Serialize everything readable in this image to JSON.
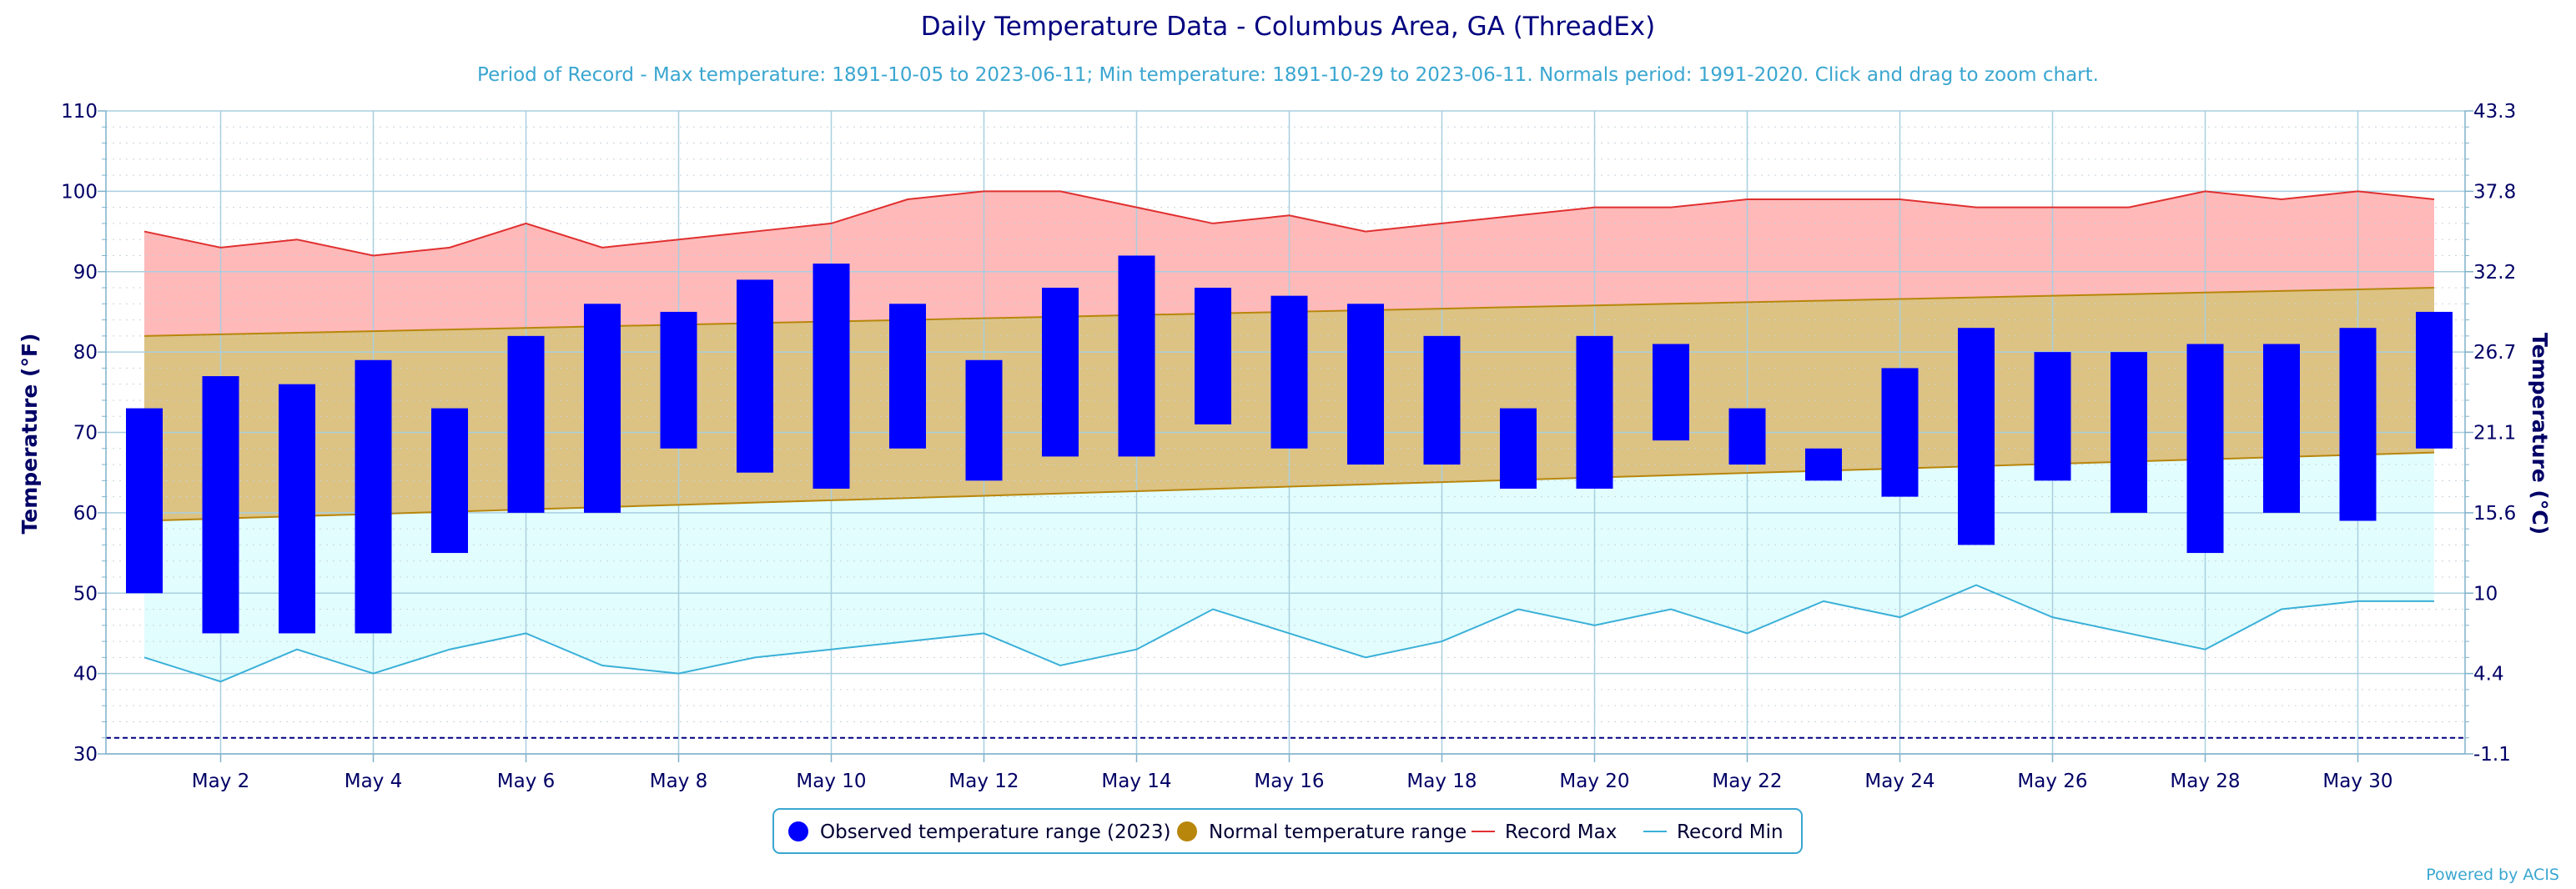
{
  "chart_data": {
    "type": "bar",
    "title": "Daily Temperature Data - Columbus Area, GA (ThreadEx)",
    "subtitle": "Period of Record - Max temperature: 1891-10-05 to 2023-06-11; Min temperature: 1891-10-29 to 2023-06-11. Normals period: 1991-2020. Click and drag to zoom chart.",
    "ylabel": "Temperature (°F)",
    "ylabel_right": "Temperature (°C)",
    "ylim": [
      30,
      110
    ],
    "yticks": [
      30,
      40,
      50,
      60,
      70,
      80,
      90,
      100,
      110
    ],
    "yticks_right": [
      "-1.1",
      "4.4",
      "10",
      "15.6",
      "21.1",
      "26.7",
      "32.2",
      "37.8",
      "43.3"
    ],
    "xlabels": [
      {
        "day": 2,
        "label": "May 2"
      },
      {
        "day": 4,
        "label": "May 4"
      },
      {
        "day": 6,
        "label": "May 6"
      },
      {
        "day": 8,
        "label": "May 8"
      },
      {
        "day": 10,
        "label": "May 10"
      },
      {
        "day": 12,
        "label": "May 12"
      },
      {
        "day": 14,
        "label": "May 14"
      },
      {
        "day": 16,
        "label": "May 16"
      },
      {
        "day": 18,
        "label": "May 18"
      },
      {
        "day": 20,
        "label": "May 20"
      },
      {
        "day": 22,
        "label": "May 22"
      },
      {
        "day": 24,
        "label": "May 24"
      },
      {
        "day": 26,
        "label": "May 26"
      },
      {
        "day": 28,
        "label": "May 28"
      },
      {
        "day": 30,
        "label": "May 30"
      }
    ],
    "days": [
      1,
      2,
      3,
      4,
      5,
      6,
      7,
      8,
      9,
      10,
      11,
      12,
      13,
      14,
      15,
      16,
      17,
      18,
      19,
      20,
      21,
      22,
      23,
      24,
      25,
      26,
      27,
      28,
      29,
      30,
      31
    ],
    "observed_min": [
      50,
      45,
      45,
      45,
      55,
      60,
      60,
      68,
      65,
      63,
      68,
      64,
      67,
      67,
      71,
      68,
      66,
      66,
      63,
      63,
      69,
      66,
      64,
      62,
      56,
      64,
      60,
      55,
      60,
      59,
      68
    ],
    "observed_max": [
      73,
      77,
      76,
      79,
      73,
      82,
      86,
      85,
      89,
      91,
      86,
      79,
      88,
      92,
      88,
      87,
      86,
      82,
      73,
      82,
      81,
      73,
      68,
      78,
      83,
      80,
      80,
      81,
      81,
      83,
      85
    ],
    "normal_max_start": 82,
    "normal_max_end": 88,
    "normal_min_start": 59,
    "normal_min_end": 67.5,
    "record_max": [
      95,
      93,
      94,
      92,
      93,
      96,
      93,
      94,
      95,
      96,
      99,
      100,
      100,
      98,
      96,
      97,
      95,
      96,
      97,
      98,
      98,
      99,
      99,
      99,
      98,
      98,
      98,
      100,
      99,
      100,
      99
    ],
    "record_min": [
      42,
      39,
      43,
      40,
      43,
      45,
      41,
      40,
      42,
      43,
      44,
      45,
      41,
      43,
      48,
      45,
      42,
      44,
      48,
      46,
      48,
      45,
      49,
      47,
      51,
      47,
      45,
      43,
      48,
      49,
      49
    ],
    "freezing_line": 32,
    "grid": true,
    "legend_position": "bottom-center",
    "legend": [
      {
        "label": "Observed temperature range (2023)",
        "marker": "dot",
        "color": "#0000ff"
      },
      {
        "label": "Normal temperature range",
        "marker": "dot",
        "color": "#b8860b"
      },
      {
        "label": "Record Max",
        "marker": "line",
        "color": "#e03030"
      },
      {
        "label": "Record Min",
        "marker": "line",
        "color": "#3ab0d8"
      }
    ],
    "colors": {
      "observed": "#0000ff",
      "normal_fill": "#dcc283",
      "normal_line": "#b8860b",
      "record_max_fill": "#ffb9b9",
      "record_max_line": "#e03030",
      "record_min_fill": "#e2fdfd",
      "record_min_line": "#3ab0d8",
      "freezing": "#000080"
    },
    "credit": "Powered by ACIS"
  }
}
